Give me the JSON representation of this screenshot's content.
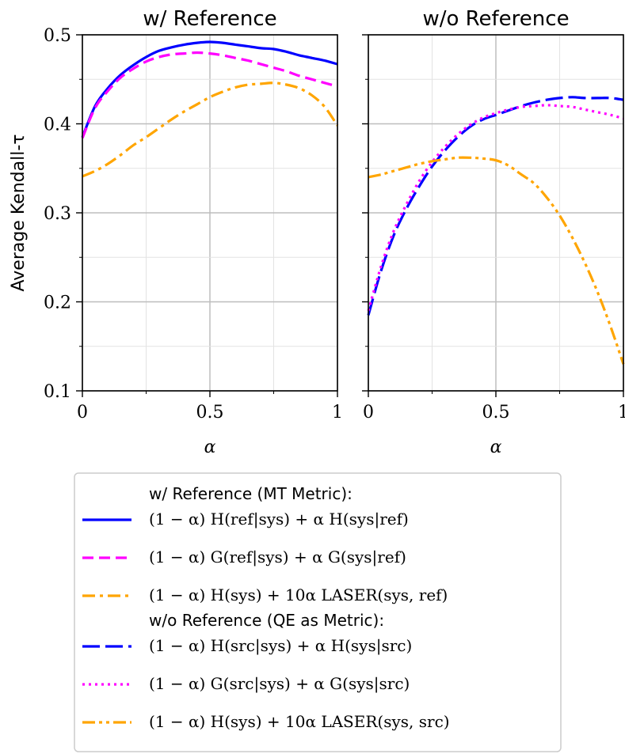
{
  "chart_data": [
    {
      "type": "line",
      "title": "w/ Reference",
      "xlabel": "α",
      "ylabel": "Average Kendall-τ",
      "xlim": [
        0,
        1
      ],
      "ylim": [
        0.1,
        0.5
      ],
      "x_ticks": [
        "0",
        "0.5",
        "1"
      ],
      "y_ticks": [
        "0.1",
        "0.2",
        "0.3",
        "0.4",
        "0.5"
      ],
      "grid": true,
      "series": [
        {
          "name": "(1 − α) H(ref|sys) + α H(sys|ref)",
          "color": "#0000ff",
          "dash": "solid",
          "x": [
            0,
            0.05,
            0.1,
            0.15,
            0.2,
            0.25,
            0.3,
            0.35,
            0.4,
            0.45,
            0.5,
            0.55,
            0.6,
            0.65,
            0.7,
            0.75,
            0.8,
            0.85,
            0.9,
            0.95,
            1.0
          ],
          "y": [
            0.385,
            0.42,
            0.44,
            0.455,
            0.466,
            0.475,
            0.482,
            0.486,
            0.489,
            0.491,
            0.492,
            0.491,
            0.489,
            0.487,
            0.485,
            0.484,
            0.481,
            0.477,
            0.474,
            0.471,
            0.467
          ]
        },
        {
          "name": "(1 − α) G(ref|sys) + α G(sys|ref)",
          "color": "#ff00ff",
          "dash": "dashed",
          "x": [
            0,
            0.05,
            0.1,
            0.15,
            0.2,
            0.25,
            0.3,
            0.35,
            0.4,
            0.45,
            0.5,
            0.55,
            0.6,
            0.65,
            0.7,
            0.75,
            0.8,
            0.85,
            0.9,
            0.95,
            1.0
          ],
          "y": [
            0.384,
            0.418,
            0.437,
            0.452,
            0.462,
            0.47,
            0.475,
            0.478,
            0.479,
            0.48,
            0.479,
            0.477,
            0.474,
            0.471,
            0.467,
            0.463,
            0.459,
            0.454,
            0.45,
            0.446,
            0.442
          ]
        },
        {
          "name": "(1 − α) H(sys) + 10α LASER(sys, ref)",
          "color": "#ffa500",
          "dash": "dashdot",
          "x": [
            0,
            0.05,
            0.1,
            0.15,
            0.2,
            0.25,
            0.3,
            0.35,
            0.4,
            0.45,
            0.5,
            0.55,
            0.6,
            0.65,
            0.7,
            0.75,
            0.8,
            0.85,
            0.9,
            0.95,
            1.0
          ],
          "y": [
            0.341,
            0.347,
            0.355,
            0.365,
            0.376,
            0.385,
            0.395,
            0.405,
            0.414,
            0.422,
            0.43,
            0.436,
            0.441,
            0.444,
            0.445,
            0.446,
            0.444,
            0.44,
            0.432,
            0.419,
            0.398
          ]
        }
      ]
    },
    {
      "type": "line",
      "title": "w/o Reference",
      "xlabel": "α",
      "ylabel": "",
      "xlim": [
        0,
        1
      ],
      "ylim": [
        0.1,
        0.5
      ],
      "x_ticks": [
        "0",
        "0.5",
        "1"
      ],
      "grid": true,
      "series": [
        {
          "name": "(1 − α) H(src|sys) + α H(sys|src)",
          "color": "#0000ff",
          "dash": "longdash",
          "x": [
            0,
            0.05,
            0.1,
            0.15,
            0.2,
            0.25,
            0.3,
            0.35,
            0.4,
            0.45,
            0.5,
            0.55,
            0.6,
            0.65,
            0.7,
            0.75,
            0.8,
            0.85,
            0.9,
            0.95,
            1.0
          ],
          "y": [
            0.185,
            0.235,
            0.275,
            0.305,
            0.33,
            0.352,
            0.37,
            0.385,
            0.397,
            0.405,
            0.41,
            0.415,
            0.42,
            0.424,
            0.427,
            0.429,
            0.43,
            0.429,
            0.429,
            0.429,
            0.427
          ]
        },
        {
          "name": "(1 − α) G(src|sys) + α G(sys|src)",
          "color": "#ff00ff",
          "dash": "dotted",
          "x": [
            0,
            0.05,
            0.1,
            0.15,
            0.2,
            0.25,
            0.3,
            0.35,
            0.4,
            0.45,
            0.5,
            0.55,
            0.6,
            0.65,
            0.7,
            0.75,
            0.8,
            0.85,
            0.9,
            0.95,
            1.0
          ],
          "y": [
            0.19,
            0.24,
            0.28,
            0.31,
            0.336,
            0.357,
            0.374,
            0.388,
            0.399,
            0.407,
            0.412,
            0.416,
            0.419,
            0.42,
            0.421,
            0.42,
            0.419,
            0.416,
            0.413,
            0.41,
            0.406
          ]
        },
        {
          "name": "(1 − α) H(sys) + 10α LASER(sys, src)",
          "color": "#ffa500",
          "dash": "dashdotdot",
          "x": [
            0,
            0.05,
            0.1,
            0.15,
            0.2,
            0.25,
            0.3,
            0.35,
            0.4,
            0.45,
            0.5,
            0.55,
            0.6,
            0.65,
            0.7,
            0.75,
            0.8,
            0.85,
            0.9,
            0.95,
            1.0
          ],
          "y": [
            0.34,
            0.343,
            0.347,
            0.351,
            0.355,
            0.358,
            0.36,
            0.362,
            0.362,
            0.361,
            0.359,
            0.353,
            0.343,
            0.333,
            0.317,
            0.297,
            0.272,
            0.243,
            0.21,
            0.172,
            0.13
          ]
        }
      ]
    }
  ],
  "legend": {
    "placement": "bottom",
    "group1_header": "w/ Reference (MT Metric):",
    "group2_header": "w/o Reference (QE as Metric):",
    "entries": [
      {
        "label": "(1 − α) H(ref|sys) + α H(sys|ref)",
        "color": "#0000ff",
        "dash": "solid"
      },
      {
        "label": "(1 − α) G(ref|sys) + α G(sys|ref)",
        "color": "#ff00ff",
        "dash": "dashed"
      },
      {
        "label": "(1 − α) H(sys) + 10α LASER(sys, ref)",
        "color": "#ffa500",
        "dash": "dashdot"
      },
      {
        "label": "(1 − α) H(src|sys) + α H(sys|src)",
        "color": "#0000ff",
        "dash": "longdash"
      },
      {
        "label": "(1 − α) G(src|sys) + α G(sys|src)",
        "color": "#ff00ff",
        "dash": "dotted"
      },
      {
        "label": "(1 − α) H(sys) + 10α LASER(sys, src)",
        "color": "#ffa500",
        "dash": "dashdotdot"
      }
    ]
  }
}
